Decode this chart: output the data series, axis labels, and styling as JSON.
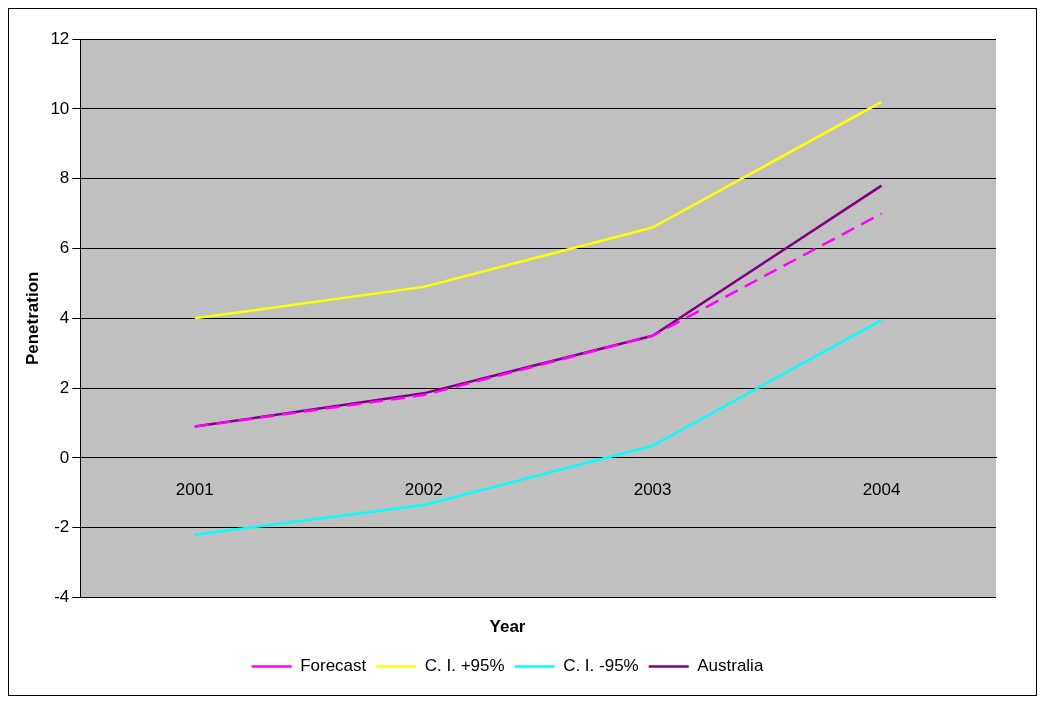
{
  "chart_data": {
    "type": "line",
    "xlabel": "Year",
    "ylabel": "Penetration",
    "categories": [
      "2001",
      "2002",
      "2003",
      "2004"
    ],
    "series": [
      {
        "name": "Forecast",
        "color": "#ff00ff",
        "line_style": "dashed",
        "values": [
          0.9,
          1.8,
          3.5,
          7.0
        ]
      },
      {
        "name": "C. I. +95%",
        "color": "#ffff00",
        "values": [
          4.0,
          4.9,
          6.6,
          10.2
        ]
      },
      {
        "name": "C. I. -95%",
        "color": "#00ffff",
        "values": [
          -2.2,
          -1.35,
          0.35,
          3.95
        ]
      },
      {
        "name": "Australia",
        "color": "#800080",
        "values": [
          0.9,
          1.85,
          3.5,
          7.8
        ]
      }
    ],
    "ylim": [
      -4,
      12
    ],
    "yticks": [
      -4,
      -2,
      0,
      2,
      4,
      6,
      8,
      10,
      12
    ],
    "grid": "y",
    "legend": "bottom",
    "marker": "none"
  }
}
